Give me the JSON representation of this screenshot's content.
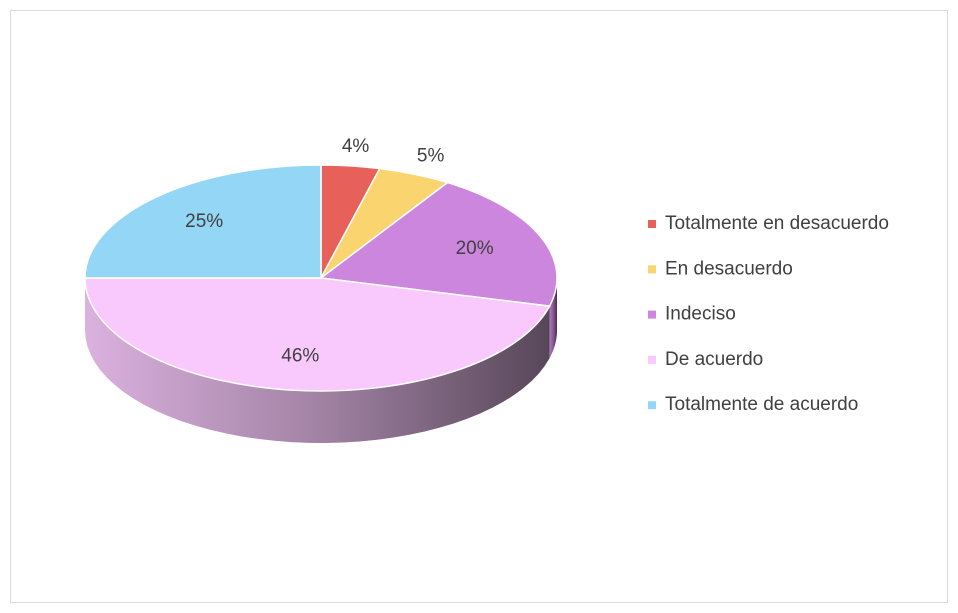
{
  "chart_data": {
    "type": "pie3d",
    "categories": [
      "Totalmente en desacuerdo",
      "En desacuerdo",
      "Indeciso",
      "De acuerdo",
      "Totalmente de acuerdo"
    ],
    "values": [
      4,
      5,
      20,
      46,
      25
    ],
    "value_labels": [
      "4%",
      "5%",
      "20%",
      "46%",
      "25%"
    ],
    "colors": [
      "#e8605a",
      "#f9d46f",
      "#cd86dd",
      "#f9c9fd",
      "#93d6f5"
    ],
    "legend": "right"
  }
}
